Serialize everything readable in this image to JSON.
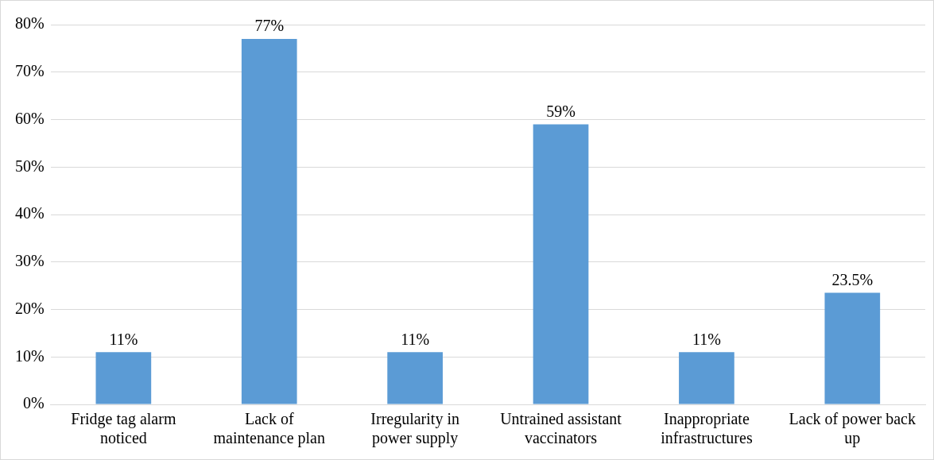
{
  "chart_data": {
    "type": "bar",
    "categories": [
      "Fridge tag alarm noticed",
      "Lack of maintenance plan",
      "Irregularity in power supply",
      "Untrained assistant vaccinators",
      "Inappropriate infrastructures",
      "Lack of power back up"
    ],
    "values": [
      11,
      77,
      11,
      59,
      11,
      23.5
    ],
    "value_labels": [
      "11%",
      "77%",
      "11%",
      "59%",
      "11%",
      "23.5%"
    ],
    "color": "#5b9bd5",
    "ylim": [
      0,
      80
    ],
    "yticks": [
      {
        "value": 0,
        "label": "0%"
      },
      {
        "value": 10,
        "label": "10%"
      },
      {
        "value": 20,
        "label": "20%"
      },
      {
        "value": 30,
        "label": "30%"
      },
      {
        "value": 40,
        "label": "40%"
      },
      {
        "value": 50,
        "label": "50%"
      },
      {
        "value": 60,
        "label": "60%"
      },
      {
        "value": 70,
        "label": "70%"
      },
      {
        "value": 80,
        "label": "80%"
      }
    ],
    "grid": "y",
    "legend": false
  }
}
